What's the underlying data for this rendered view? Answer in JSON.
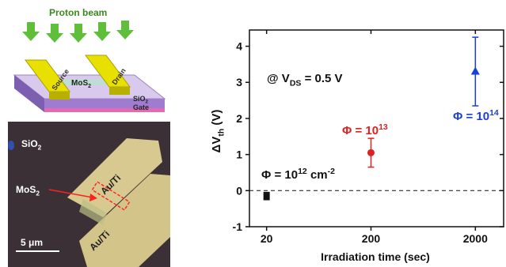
{
  "diagram": {
    "beam_label": "Proton beam",
    "source": "Source",
    "drain": "Drain",
    "channel": [
      {
        "text": "MoS",
        "style": "normal"
      },
      {
        "text": "2",
        "style": "sub"
      }
    ],
    "oxide": [
      {
        "text": "SiO",
        "style": "normal"
      },
      {
        "text": "2",
        "style": "sub"
      }
    ],
    "gate": "Gate"
  },
  "micrograph": {
    "oxide": [
      {
        "text": "SiO",
        "style": "normal"
      },
      {
        "text": "2",
        "style": "sub"
      }
    ],
    "channel": [
      {
        "text": "MoS",
        "style": "normal"
      },
      {
        "text": "2",
        "style": "sub"
      }
    ],
    "electrodes": [
      "Au/Ti",
      "Au/Ti"
    ],
    "scale_bar": "5 μm"
  },
  "chart_data": {
    "type": "scatter",
    "x_label": "Irradiation time (sec)",
    "y_label": [
      {
        "text": "ΔV",
        "style": "normal"
      },
      {
        "text": "th",
        "style": "sub"
      },
      {
        "text": " (V)",
        "style": "normal"
      }
    ],
    "x": [
      20,
      200,
      2000
    ],
    "values": [
      -0.15,
      1.05,
      3.3
    ],
    "errors": [
      0.1,
      0.4,
      0.95
    ],
    "colors": [
      "#111111",
      "#e02020",
      "#1a3fd8"
    ],
    "markers": [
      "square",
      "circle",
      "triangle"
    ],
    "xlim": [
      13.7,
      3730
    ],
    "xticks": [
      20,
      200,
      2000
    ],
    "log_x": true,
    "ylim": [
      -1,
      4.45
    ],
    "yticks": [
      -1,
      0,
      1,
      2,
      3,
      4
    ],
    "reference_line": 0,
    "annotations": [
      {
        "color": "#111111",
        "parts": [
          {
            "text": "@ V",
            "style": "normal"
          },
          {
            "text": "DS",
            "style": "sub"
          },
          {
            "text": " = 0.5 V",
            "style": "normal"
          }
        ]
      },
      {
        "color": "#111111",
        "parts": [
          {
            "text": "Φ = 10",
            "style": "normal"
          },
          {
            "text": "12",
            "style": "sup"
          },
          {
            "text": " cm",
            "style": "normal"
          },
          {
            "text": "-2",
            "style": "sup"
          }
        ]
      },
      {
        "color": "#e02020",
        "parts": [
          {
            "text": "Φ = 10",
            "style": "normal"
          },
          {
            "text": "13",
            "style": "sup"
          }
        ]
      },
      {
        "color": "#1a3fd8",
        "parts": [
          {
            "text": "Φ = 10",
            "style": "normal"
          },
          {
            "text": "14",
            "style": "sup"
          }
        ]
      }
    ]
  }
}
